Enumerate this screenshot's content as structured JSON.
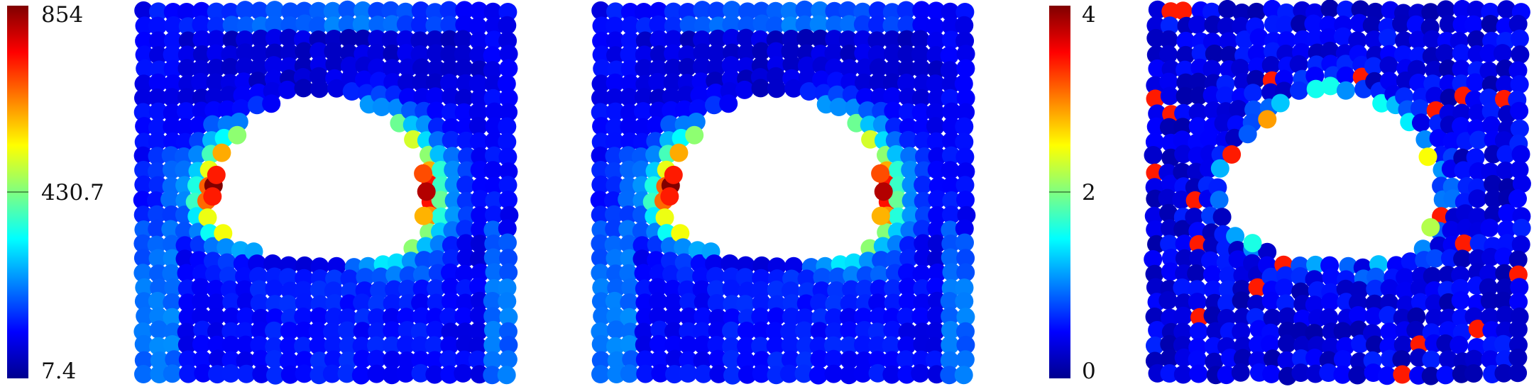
{
  "chart_data": [
    {
      "type": "scatter",
      "colormap": "jet",
      "colorbar": {
        "min": 7.4,
        "max": 854,
        "ticks": [
          {
            "label": "854",
            "value": 854
          },
          {
            "label": "430.7",
            "value": 430.7
          },
          {
            "label": "7.4",
            "value": 7.4
          }
        ]
      },
      "field": {
        "hole_center": [
          0.44,
          0.48
        ],
        "peak_value": 854
      }
    },
    {
      "type": "scatter",
      "colormap": "jet",
      "colorbar": {
        "min": 7.4,
        "max": 854,
        "shared_with_panel": 0
      },
      "field": {
        "hole_center": [
          0.44,
          0.48
        ],
        "peak_value": 854
      }
    },
    {
      "type": "scatter",
      "colormap": "jet",
      "colorbar": {
        "min": 0,
        "max": 4,
        "ticks": [
          {
            "label": "4",
            "value": 4
          },
          {
            "label": "2",
            "value": 2
          },
          {
            "label": "0",
            "value": 0
          }
        ]
      },
      "field": {
        "hole_center": [
          0.44,
          0.48
        ],
        "peak_value": 4
      }
    }
  ]
}
